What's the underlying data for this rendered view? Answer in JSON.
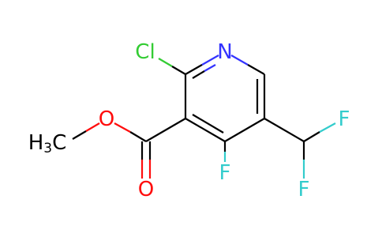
{
  "atoms": {
    "nitrogen": "N",
    "chlorine": "Cl",
    "ring_fluorine": "F",
    "difluoro_f1": "F",
    "difluoro_f2": "F",
    "carbonyl_oxygen": "O",
    "ether_oxygen": "O",
    "methyl": {
      "h": "H",
      "count": "3",
      "c": "C"
    }
  }
}
